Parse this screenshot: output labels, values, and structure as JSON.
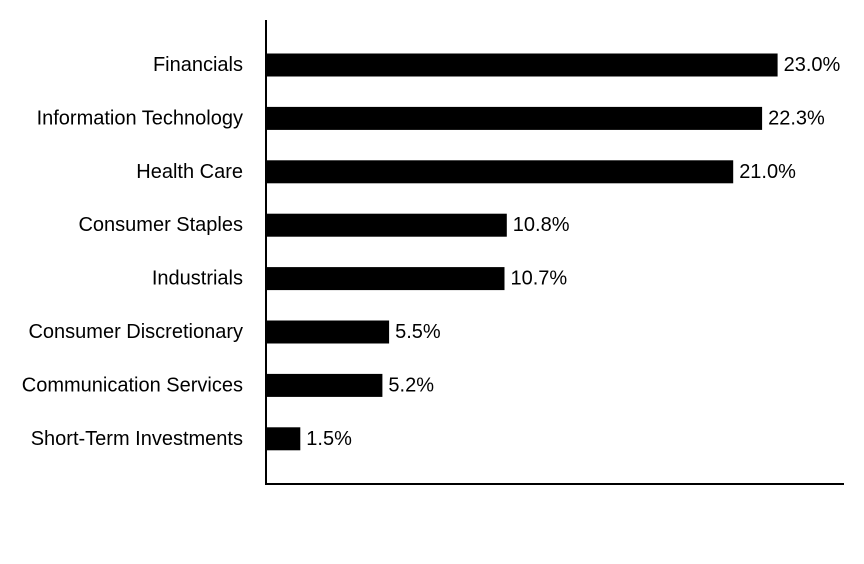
{
  "chart_data": {
    "type": "bar",
    "orientation": "horizontal",
    "title": "",
    "xlabel": "",
    "ylabel": "",
    "xlim": [
      0,
      25
    ],
    "grid": false,
    "legend": "none",
    "bar_color": "#000000",
    "value_suffix": "%",
    "categories": [
      "Financials",
      "Information Technology",
      "Health Care",
      "Consumer Staples",
      "Industrials",
      "Consumer Discretionary",
      "Communication Services",
      "Short-Term Investments"
    ],
    "values": [
      23.0,
      22.3,
      21.0,
      10.8,
      10.7,
      5.5,
      5.2,
      1.5
    ],
    "value_labels": [
      "23.0%",
      "22.3%",
      "21.0%",
      "10.8%",
      "10.7%",
      "5.5%",
      "5.2%",
      "1.5%"
    ]
  }
}
